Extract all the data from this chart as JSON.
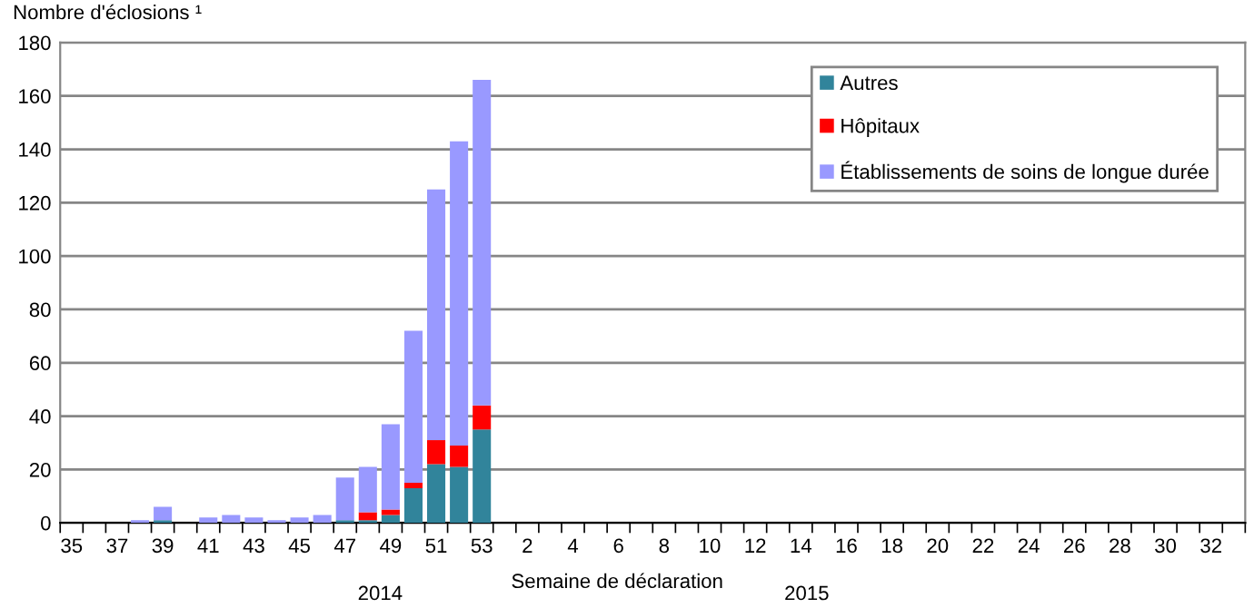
{
  "chart_data": {
    "type": "bar",
    "stacked": true,
    "ylabel": "Nombre d'éclosions ¹",
    "xlabel": "Semaine de déclaration",
    "annotations": [
      "2014",
      "2015"
    ],
    "categories": [
      "35",
      null,
      "37",
      null,
      "39",
      null,
      "41",
      null,
      "43",
      null,
      "45",
      null,
      "47",
      null,
      "49",
      null,
      "51",
      null,
      "53",
      null,
      "2",
      null,
      "4",
      null,
      "6",
      null,
      "8",
      null,
      "10",
      null,
      "12",
      null,
      "14",
      null,
      "16",
      null,
      "18",
      null,
      "20",
      null,
      "22",
      null,
      "24",
      null,
      "26",
      null,
      "28",
      null,
      "30",
      null,
      "32",
      null
    ],
    "series": [
      {
        "name": "Autres",
        "color": "#31849b",
        "values": [
          0,
          0,
          0,
          0,
          1,
          0,
          0,
          0,
          0,
          0,
          0,
          0,
          1,
          1,
          3,
          13,
          22,
          21,
          35,
          0,
          0,
          0,
          0,
          0,
          0,
          0,
          0,
          0,
          0,
          0,
          0,
          0,
          0,
          0,
          0,
          0,
          0,
          0,
          0,
          0,
          0,
          0,
          0,
          0,
          0,
          0,
          0,
          0,
          0,
          0,
          0,
          0
        ]
      },
      {
        "name": "Hôpitaux",
        "color": "#ff0000",
        "values": [
          0,
          0,
          0,
          0,
          0,
          0,
          0,
          0,
          0,
          0,
          0,
          0,
          0,
          3,
          2,
          2,
          9,
          8,
          9,
          0,
          0,
          0,
          0,
          0,
          0,
          0,
          0,
          0,
          0,
          0,
          0,
          0,
          0,
          0,
          0,
          0,
          0,
          0,
          0,
          0,
          0,
          0,
          0,
          0,
          0,
          0,
          0,
          0,
          0,
          0,
          0,
          0
        ]
      },
      {
        "name": "Établissements de soins de longue durée",
        "color": "#9999ff",
        "values": [
          0,
          0,
          0,
          1,
          5,
          0,
          2,
          3,
          2,
          1,
          2,
          3,
          16,
          17,
          32,
          57,
          94,
          114,
          122,
          0,
          0,
          0,
          0,
          0,
          0,
          0,
          0,
          0,
          0,
          0,
          0,
          0,
          0,
          0,
          0,
          0,
          0,
          0,
          0,
          0,
          0,
          0,
          0,
          0,
          0,
          0,
          0,
          0,
          0,
          0,
          0,
          0
        ]
      }
    ],
    "ylim": [
      0,
      180
    ],
    "yticks": [
      0,
      20,
      40,
      60,
      80,
      100,
      120,
      140,
      160,
      180
    ],
    "grid": "y",
    "legend": "top right"
  }
}
